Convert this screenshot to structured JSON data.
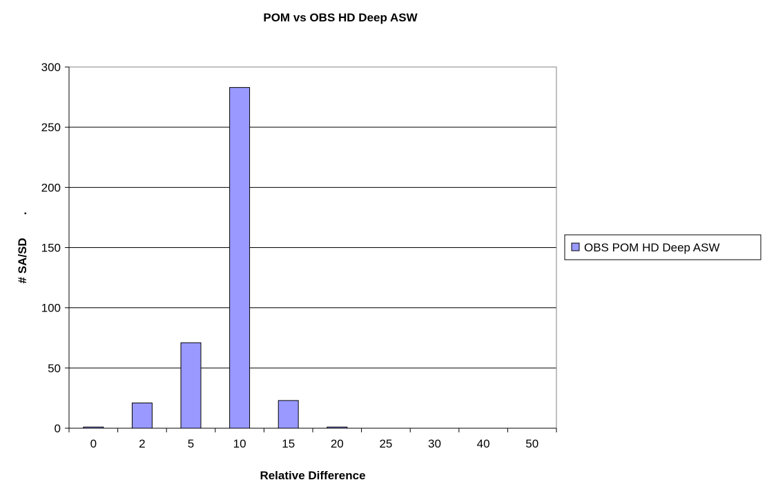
{
  "chart_data": {
    "type": "bar",
    "title": "POM vs OBS HD Deep ASW",
    "xlabel": "Relative Difference",
    "ylabel": "# SA/SD       .",
    "categories": [
      "0",
      "2",
      "5",
      "10",
      "15",
      "20",
      "25",
      "30",
      "40",
      "50"
    ],
    "series": [
      {
        "name": "OBS POM HD Deep ASW",
        "values": [
          1,
          21,
          71,
          283,
          23,
          1,
          0,
          0,
          0,
          0
        ]
      }
    ],
    "ylim": [
      0,
      300
    ],
    "yticks": [
      0,
      50,
      100,
      150,
      200,
      250,
      300
    ],
    "grid": true,
    "legend_position": "right",
    "colors": {
      "bar_fill": "#9999ff",
      "bar_stroke": "#000000",
      "grid": "#000000",
      "plot_border": "#808080"
    }
  }
}
